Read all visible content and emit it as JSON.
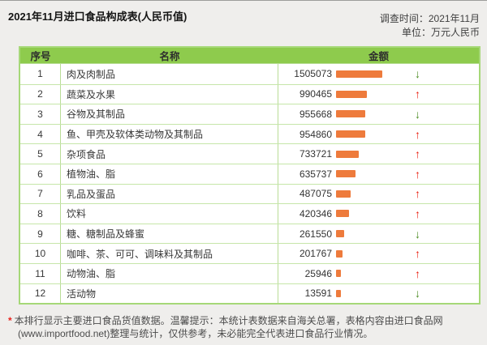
{
  "page": {
    "title": "2021年11月进口食品构成表(人民币值)",
    "survey_time_label": "调查时间：2021年11月",
    "unit_label": "单位：万元人民币",
    "footnote_star": "*",
    "footnote": "本排行显示主要进口食品货值数据。温馨提示：本统计表数据来自海关总署，表格内容由进口食品网(www.importfood.net)整理与统计，仅供参考，未必能完全代表进口食品行业情况。"
  },
  "table": {
    "headers": [
      "序号",
      "名称",
      "金额"
    ],
    "rows": [
      {
        "seq": "1",
        "name": "肉及肉制品",
        "value": 1505073,
        "trend": "down"
      },
      {
        "seq": "2",
        "name": "蔬菜及水果",
        "value": 990465,
        "trend": "up"
      },
      {
        "seq": "3",
        "name": "谷物及其制品",
        "value": 955668,
        "trend": "down"
      },
      {
        "seq": "4",
        "name": "鱼、甲壳及软体类动物及其制品",
        "value": 954860,
        "trend": "up"
      },
      {
        "seq": "5",
        "name": "杂项食品",
        "value": 733721,
        "trend": "up"
      },
      {
        "seq": "6",
        "name": "植物油、脂",
        "value": 635737,
        "trend": "up"
      },
      {
        "seq": "7",
        "name": "乳品及蛋品",
        "value": 487075,
        "trend": "up"
      },
      {
        "seq": "8",
        "name": "饮料",
        "value": 420346,
        "trend": "up"
      },
      {
        "seq": "9",
        "name": "糖、糖制品及蜂蜜",
        "value": 261550,
        "trend": "down"
      },
      {
        "seq": "10",
        "name": "咖啡、茶、可可、调味料及其制品",
        "value": 201767,
        "trend": "up"
      },
      {
        "seq": "11",
        "name": "动物油、脂",
        "value": 25946,
        "trend": "up"
      },
      {
        "seq": "12",
        "name": "活动物",
        "value": 13591,
        "trend": "down"
      }
    ]
  },
  "colors": {
    "header_green": "#8ecb4d",
    "grid_green": "#b9dd97",
    "bar_orange": "#ee7b3c",
    "up_red": "#ea1c0d",
    "down_green": "#4b8b21"
  },
  "icons": {
    "up": "↑",
    "down": "↓"
  },
  "chart_data": {
    "type": "table",
    "title": "2021年11月进口食品构成表(人民币值)",
    "survey_time": "2021年11月",
    "unit": "万元人民币",
    "columns": [
      "序号",
      "名称",
      "金额"
    ],
    "categories": [
      "肉及肉制品",
      "蔬菜及水果",
      "谷物及其制品",
      "鱼、甲壳及软体类动物及其制品",
      "杂项食品",
      "植物油、脂",
      "乳品及蛋品",
      "饮料",
      "糖、糖制品及蜂蜜",
      "咖啡、茶、可可、调味料及其制品",
      "动物油、脂",
      "活动物"
    ],
    "values": [
      1505073,
      990465,
      955668,
      954860,
      733721,
      635737,
      487075,
      420346,
      261550,
      201767,
      25946,
      13591
    ],
    "trend_vs_previous": [
      "down",
      "up",
      "down",
      "up",
      "up",
      "up",
      "up",
      "up",
      "down",
      "up",
      "up",
      "down"
    ],
    "bar_style": "inline horizontal bars proportional to value, orange",
    "legend": "none",
    "grid": "light green table grid"
  }
}
